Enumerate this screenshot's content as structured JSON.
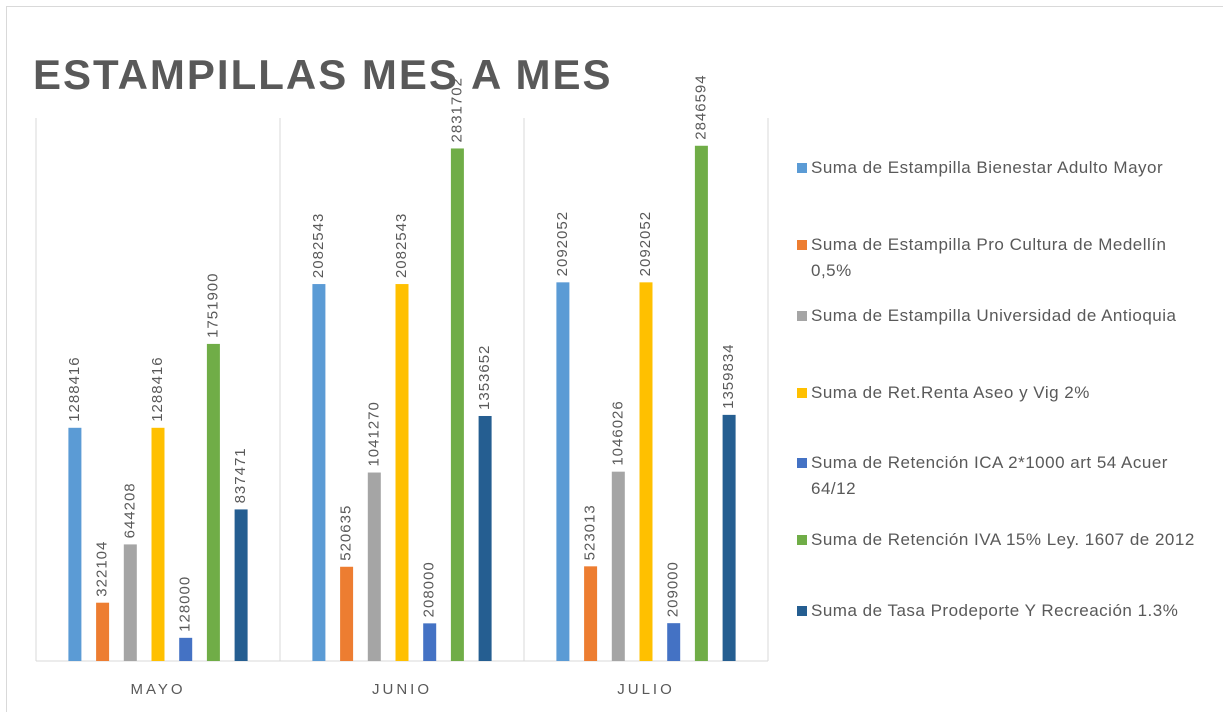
{
  "chart_data": {
    "type": "bar",
    "title": "ESTAMPILLAS MES A MES",
    "categories": [
      "MAYO",
      "JUNIO",
      "JULIO"
    ],
    "series": [
      {
        "name": "Suma de Estampilla Bienestar Adulto Mayor",
        "color": "#5b9bd5",
        "values": [
          1288416,
          2082543,
          2092052
        ]
      },
      {
        "name": "Suma de Estampilla Pro Cultura de Medellín 0,5%",
        "color": "#ed7d31",
        "values": [
          322104,
          520635,
          523013
        ]
      },
      {
        "name": "Suma de Estampilla Universidad de Antioquia",
        "color": "#a5a5a5",
        "values": [
          644208,
          1041270,
          1046026
        ]
      },
      {
        "name": "Suma de Ret.Renta Aseo y Vig 2%",
        "color": "#ffc000",
        "values": [
          1288416,
          2082543,
          2092052
        ]
      },
      {
        "name": "Suma de Retención ICA 2*1000 art 54 Acuer 64/12",
        "color": "#4472c4",
        "values": [
          128000,
          208000,
          209000
        ]
      },
      {
        "name": "Suma de Retención IVA 15% Ley. 1607 de 2012",
        "color": "#70ad47",
        "values": [
          1751900,
          2831702,
          2846594
        ]
      },
      {
        "name": "Suma de Tasa Prodeporte Y Recreación 1.3%",
        "color": "#255e91",
        "values": [
          837471,
          1353652,
          1359834
        ]
      }
    ],
    "ylim": [
      0,
      3000000
    ],
    "legend": "right"
  }
}
